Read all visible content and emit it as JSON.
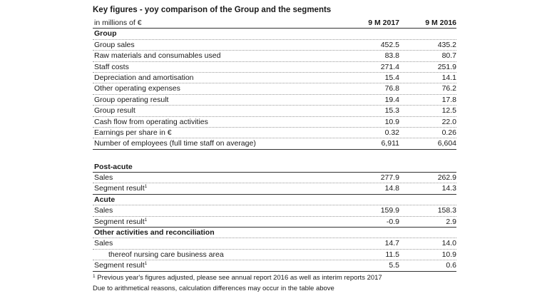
{
  "title": "Key figures - yoy comparison of the Group and the segments",
  "header": {
    "unit": "in millions of €",
    "col1": "9 M 2017",
    "col2": "9 M 2016"
  },
  "group": {
    "heading": "Group",
    "rows": [
      {
        "label": "Group sales",
        "v1": "452.5",
        "v2": "435.2"
      },
      {
        "label": "Raw materials and consumables used",
        "v1": "83.8",
        "v2": "80.7"
      },
      {
        "label": "Staff costs",
        "v1": "271.4",
        "v2": "251.9"
      },
      {
        "label": "Depreciation and amortisation",
        "v1": "15.4",
        "v2": "14.1"
      },
      {
        "label": "Other operating expenses",
        "v1": "76.8",
        "v2": "76.2"
      },
      {
        "label": "Group operating result",
        "v1": "19.4",
        "v2": "17.8"
      },
      {
        "label": "Group result",
        "v1": "15.3",
        "v2": "12.5"
      },
      {
        "label": "Cash flow from operating activities",
        "v1": "10.9",
        "v2": "22.0"
      },
      {
        "label": "Earnings per share in €",
        "v1": "0.32",
        "v2": "0.26"
      },
      {
        "label": "Number of employees (full time staff on average)",
        "v1": "6,911",
        "v2": "6,604"
      }
    ]
  },
  "post_acute": {
    "heading": "Post-acute",
    "sales": {
      "label": "Sales",
      "v1": "277.9",
      "v2": "262.9"
    },
    "result": {
      "label": "Segment result",
      "sup": "1",
      "v1": "14.8",
      "v2": "14.3"
    }
  },
  "acute": {
    "heading": "Acute",
    "sales": {
      "label": "Sales",
      "v1": "159.9",
      "v2": "158.3"
    },
    "result": {
      "label": "Segment result",
      "sup": "1",
      "v1": "-0.9",
      "v2": "2.9"
    }
  },
  "other": {
    "heading": "Other activities and reconciliation",
    "sales": {
      "label": "Sales",
      "v1": "14.7",
      "v2": "14.0"
    },
    "thereof": {
      "label": "thereof nursing care business area",
      "v1": "11.5",
      "v2": "10.9"
    },
    "result": {
      "label": "Segment result",
      "sup": "1",
      "v1": "5.5",
      "v2": "0.6"
    }
  },
  "footnotes": {
    "note1_sup": "1",
    "note1": "Previous year's figures adjusted, please see annual report 2016 as well as interim reports 2017",
    "note2": "Due to arithmetical reasons, calculation differences may occur in the table above"
  }
}
